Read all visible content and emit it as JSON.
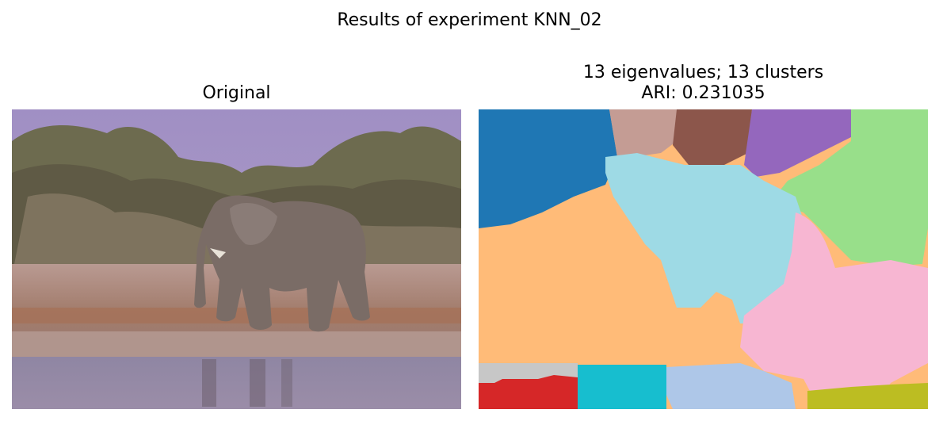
{
  "figure": {
    "suptitle": "Results of experiment KNN_02"
  },
  "panels": [
    {
      "title": "Original",
      "image": "photograph: elephant walking on rocky dry ground in front of shrubs, water in foreground"
    },
    {
      "title_line1": "13 eigenvalues; 13 clusters",
      "title_line2": "ARI: 0.231035",
      "image": "segmentation map with 13 colored clusters"
    }
  ],
  "cluster_colors": [
    "#1f77b4",
    "#c49c94",
    "#8c564b",
    "#9467bd",
    "#98df8a",
    "#9edae5",
    "#ffbb78",
    "#f7b6d2",
    "#c7c7c7",
    "#d62728",
    "#17becf",
    "#aec7e8",
    "#bcbd22"
  ]
}
